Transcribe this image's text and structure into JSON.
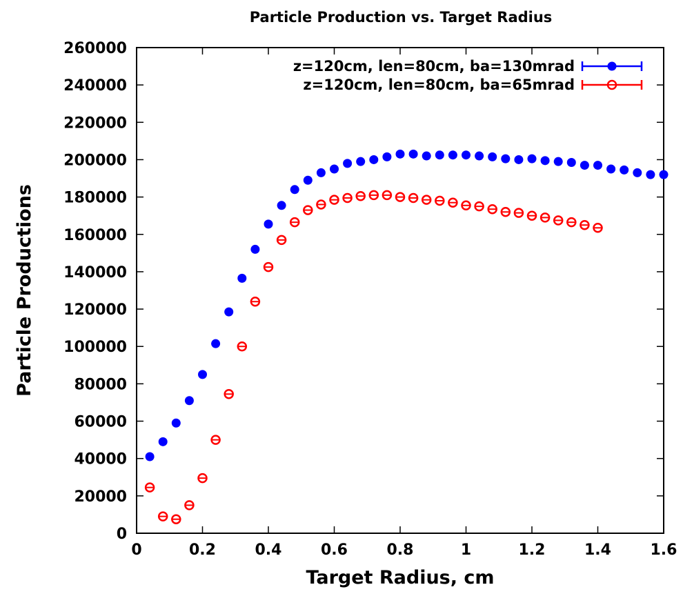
{
  "chart_data": {
    "type": "scatter",
    "title": "Particle Production vs. Target Radius",
    "xlabel": "Target Radius, cm",
    "ylabel": "Particle Productions",
    "xlim": [
      0,
      1.6
    ],
    "ylim": [
      0,
      260000
    ],
    "xticks": [
      "0",
      "0.2",
      "0.4",
      "0.6",
      "0.8",
      "1",
      "1.2",
      "1.4",
      "1.6"
    ],
    "yticks": [
      "0",
      "20000",
      "40000",
      "60000",
      "80000",
      "100000",
      "120000",
      "140000",
      "160000",
      "180000",
      "200000",
      "220000",
      "240000",
      "260000"
    ],
    "legend_position": "top-right",
    "grid": false,
    "series": [
      {
        "name": "z=120cm, len=80cm, ba=130mrad",
        "color": "#0000ff",
        "marker": "filled-circle",
        "points": [
          [
            0.04,
            41000
          ],
          [
            0.08,
            49000
          ],
          [
            0.12,
            59000
          ],
          [
            0.16,
            71000
          ],
          [
            0.2,
            85000
          ],
          [
            0.24,
            101500
          ],
          [
            0.28,
            118500
          ],
          [
            0.32,
            136500
          ],
          [
            0.36,
            152000
          ],
          [
            0.4,
            165500
          ],
          [
            0.44,
            175500
          ],
          [
            0.48,
            184000
          ],
          [
            0.52,
            189000
          ],
          [
            0.56,
            193000
          ],
          [
            0.6,
            195000
          ],
          [
            0.64,
            198000
          ],
          [
            0.68,
            199000
          ],
          [
            0.72,
            200000
          ],
          [
            0.76,
            201500
          ],
          [
            0.8,
            203000
          ],
          [
            0.84,
            203000
          ],
          [
            0.88,
            202000
          ],
          [
            0.92,
            202500
          ],
          [
            0.96,
            202500
          ],
          [
            1.0,
            202500
          ],
          [
            1.04,
            202000
          ],
          [
            1.08,
            201500
          ],
          [
            1.12,
            200500
          ],
          [
            1.16,
            200000
          ],
          [
            1.2,
            200500
          ],
          [
            1.24,
            199500
          ],
          [
            1.28,
            199000
          ],
          [
            1.32,
            198500
          ],
          [
            1.36,
            197000
          ],
          [
            1.4,
            197000
          ],
          [
            1.44,
            195000
          ],
          [
            1.48,
            194500
          ],
          [
            1.52,
            193000
          ],
          [
            1.56,
            192000
          ],
          [
            1.6,
            192000
          ]
        ]
      },
      {
        "name": "z=120cm, len=80cm, ba=65mrad",
        "color": "#ff0000",
        "marker": "open-circle",
        "points": [
          [
            0.04,
            24500
          ],
          [
            0.08,
            9000
          ],
          [
            0.12,
            7500
          ],
          [
            0.16,
            15000
          ],
          [
            0.2,
            29500
          ],
          [
            0.24,
            50000
          ],
          [
            0.28,
            74500
          ],
          [
            0.32,
            100000
          ],
          [
            0.36,
            124000
          ],
          [
            0.4,
            142500
          ],
          [
            0.44,
            157000
          ],
          [
            0.48,
            166500
          ],
          [
            0.52,
            173000
          ],
          [
            0.56,
            176000
          ],
          [
            0.6,
            178500
          ],
          [
            0.64,
            179500
          ],
          [
            0.68,
            180500
          ],
          [
            0.72,
            181000
          ],
          [
            0.76,
            181000
          ],
          [
            0.8,
            180000
          ],
          [
            0.84,
            179500
          ],
          [
            0.88,
            178500
          ],
          [
            0.92,
            178000
          ],
          [
            0.96,
            177000
          ],
          [
            1.0,
            175500
          ],
          [
            1.04,
            175000
          ],
          [
            1.08,
            173500
          ],
          [
            1.12,
            172000
          ],
          [
            1.16,
            171500
          ],
          [
            1.2,
            170000
          ],
          [
            1.24,
            169000
          ],
          [
            1.28,
            167500
          ],
          [
            1.32,
            166500
          ],
          [
            1.36,
            165000
          ],
          [
            1.4,
            163500
          ]
        ]
      }
    ]
  }
}
